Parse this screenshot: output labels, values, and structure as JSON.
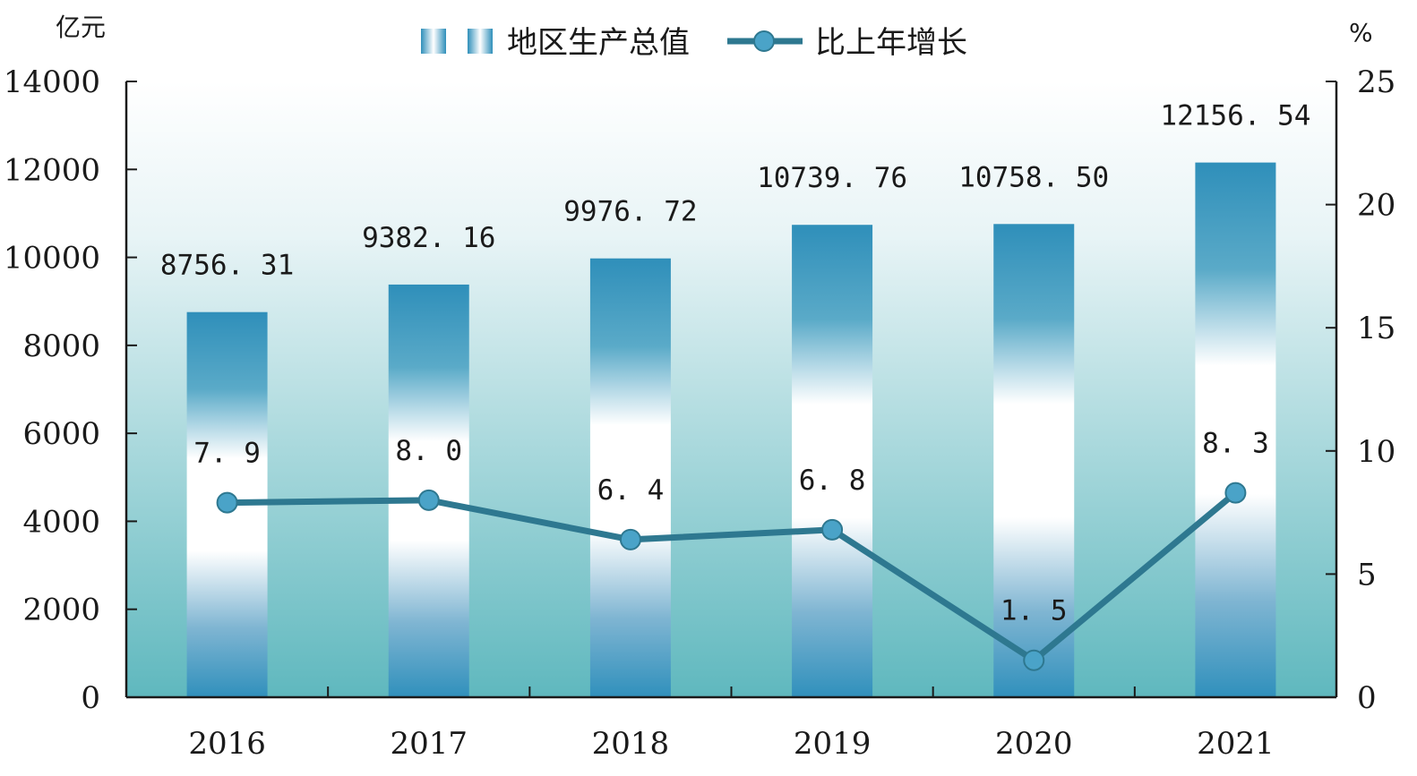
{
  "chart_data": {
    "type": "bar",
    "categories": [
      "2016",
      "2017",
      "2018",
      "2019",
      "2020",
      "2021"
    ],
    "series": [
      {
        "name": "地区生产总值",
        "type": "bar",
        "axis": "left",
        "values": [
          8756.31,
          9382.16,
          9976.72,
          10739.76,
          10758.5,
          12156.54
        ],
        "labels": [
          "8756. 31",
          "9382. 16",
          "9976. 72",
          "10739. 76",
          "10758. 50",
          "12156. 54"
        ]
      },
      {
        "name": "比上年增长",
        "type": "line",
        "axis": "right",
        "values": [
          7.9,
          8.0,
          6.4,
          6.8,
          1.5,
          8.3
        ],
        "labels": [
          "7. 9",
          "8. 0",
          "6. 4",
          "6. 8",
          "1. 5",
          "8. 3"
        ]
      }
    ],
    "y_left": {
      "unit": "亿元",
      "ylim": [
        0,
        14000
      ],
      "ticks": [
        "0",
        "2000",
        "4000",
        "6000",
        "8000",
        "10000",
        "12000",
        "14000"
      ]
    },
    "y_right": {
      "unit": "%",
      "ylim": [
        0,
        25
      ],
      "ticks": [
        "0",
        "5",
        "10",
        "15",
        "20",
        "25"
      ]
    },
    "legend_position": "top-center",
    "grid": false,
    "colors": {
      "bar_dark": "#2f8fba",
      "bar_light": "#ffffff",
      "line": "#2e7890",
      "marker": "#4aa3c8",
      "bg_top": "#ffffff",
      "bg_bottom": "#5fb8be",
      "axis": "#1a1a1a"
    }
  }
}
